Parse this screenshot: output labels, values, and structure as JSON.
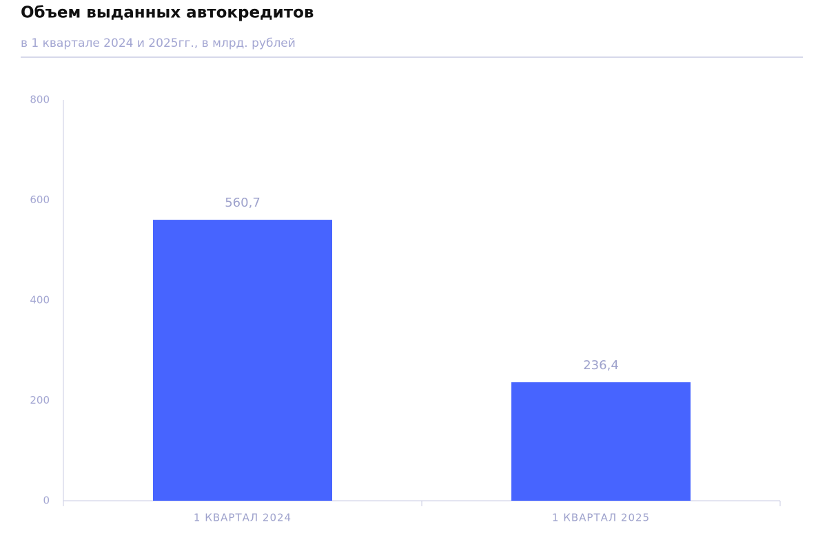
{
  "chart_data": {
    "type": "bar",
    "title": "Объем выданных автокредитов",
    "subtitle": "в 1 квартале 2024 и 2025гг., в млрд. рублей",
    "categories": [
      "1 КВАРТАЛ 2024",
      "1 КВАРТАЛ 2025"
    ],
    "values": [
      560.7,
      236.4
    ],
    "value_labels": [
      "560,7",
      "236,4"
    ],
    "color": "#4764ff",
    "ylim": [
      0,
      800
    ],
    "yticks": [
      0,
      200,
      400,
      600,
      800
    ],
    "grid": false
  }
}
